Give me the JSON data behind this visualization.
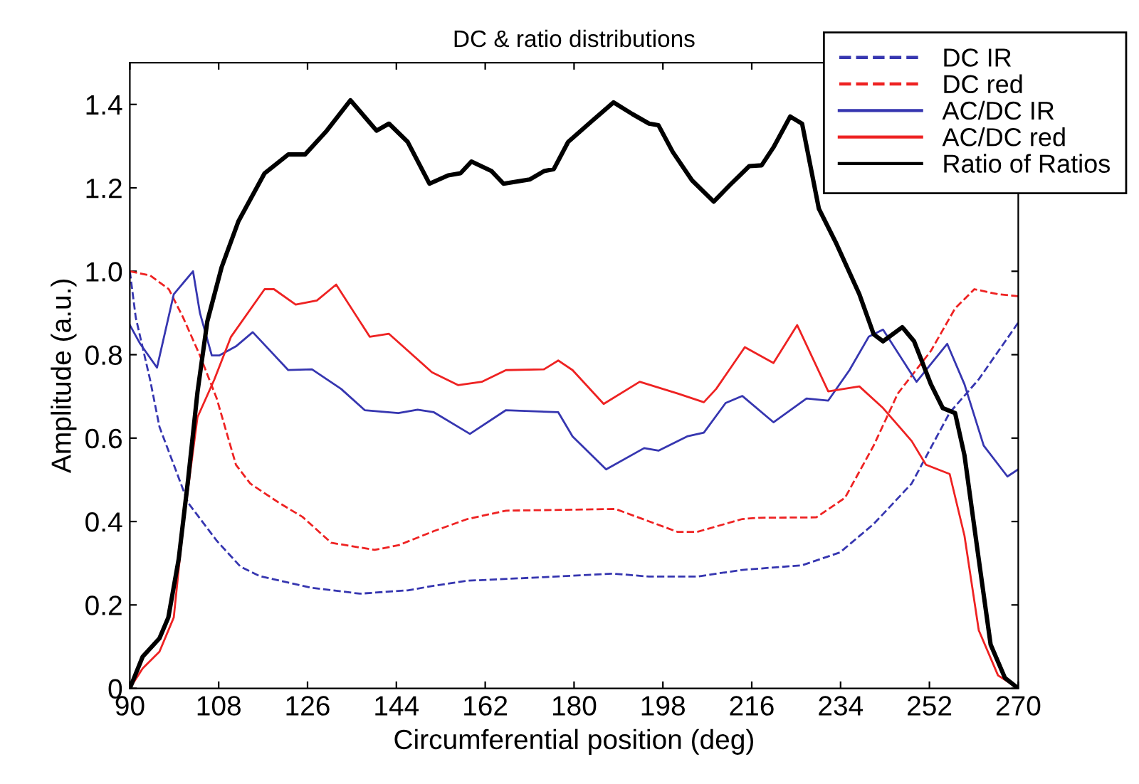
{
  "chart_data": {
    "type": "line",
    "title": "DC & ratio distributions",
    "xlabel": "Circumferential position (deg)",
    "ylabel": "Amplitude (a.u.)",
    "xlim": [
      90,
      270
    ],
    "ylim": [
      0,
      1.5
    ],
    "xticks": [
      90,
      108,
      126,
      144,
      162,
      180,
      198,
      216,
      234,
      252,
      270
    ],
    "yticks": [
      0,
      0.2,
      0.4,
      0.6,
      0.8,
      {
        "value": 1.0,
        "label": "1.0"
      },
      1.2,
      1.4
    ],
    "grid": false,
    "legend": "top right",
    "marker": "none",
    "series": [
      {
        "name": "DC IR",
        "color": "#3636b0",
        "line_style": "dashed",
        "x": [
          90,
          91.2,
          94.1,
          96,
          98.9,
          101.8,
          107.6,
          112.4,
          116.3,
          126.9,
          136.6,
          146.3,
          151.6,
          158.4,
          169.2,
          188,
          195.2,
          204.9,
          214.1,
          226.2,
          233.9,
          240.7,
          248.4,
          256.1,
          262,
          270
        ],
        "values": [
          1.0,
          0.889,
          0.74,
          0.627,
          0.536,
          0.445,
          0.354,
          0.292,
          0.269,
          0.241,
          0.227,
          0.235,
          0.246,
          0.258,
          0.264,
          0.275,
          0.268,
          0.268,
          0.284,
          0.295,
          0.326,
          0.394,
          0.491,
          0.661,
          0.741,
          0.877
        ]
      },
      {
        "name": "DC red",
        "color": "#ee2222",
        "line_style": "dashed",
        "x": [
          90,
          94.1,
          97.9,
          100.8,
          104.2,
          107.6,
          111.5,
          114.4,
          120.2,
          125,
          130.8,
          139.6,
          144.4,
          151.6,
          158.4,
          166.2,
          188.4,
          201,
          204.9,
          214.1,
          217.5,
          229.1,
          234.9,
          240.7,
          245.6,
          252.3,
          257.2,
          261.1,
          265.9,
          270
        ],
        "values": [
          1.0,
          0.99,
          0.957,
          0.889,
          0.798,
          0.695,
          0.536,
          0.491,
          0.445,
          0.411,
          0.349,
          0.332,
          0.343,
          0.377,
          0.406,
          0.426,
          0.43,
          0.375,
          0.375,
          0.406,
          0.409,
          0.41,
          0.457,
          0.582,
          0.707,
          0.809,
          0.911,
          0.957,
          0.945,
          0.94
        ]
      },
      {
        "name": "AC/DC IR",
        "color": "#3636b0",
        "line_style": "solid",
        "x": [
          90,
          92.1,
          95.5,
          98.9,
          102.8,
          104.2,
          106.6,
          108.1,
          111.5,
          114.9,
          122.1,
          126.9,
          132.8,
          137.6,
          144.4,
          148.3,
          151.6,
          158.9,
          166.2,
          176.8,
          179.7,
          186.5,
          194.2,
          197.1,
          202.9,
          206.3,
          210.7,
          214.1,
          220.4,
          227.1,
          231.5,
          235.8,
          239.7,
          242.6,
          249.4,
          255.6,
          259.1,
          263,
          267.8,
          270
        ],
        "values": [
          0.871,
          0.826,
          0.769,
          0.945,
          1.0,
          0.9,
          0.798,
          0.798,
          0.82,
          0.854,
          0.763,
          0.765,
          0.718,
          0.667,
          0.66,
          0.668,
          0.662,
          0.61,
          0.667,
          0.662,
          0.604,
          0.525,
          0.576,
          0.57,
          0.604,
          0.613,
          0.684,
          0.701,
          0.638,
          0.695,
          0.69,
          0.763,
          0.843,
          0.86,
          0.735,
          0.826,
          0.729,
          0.582,
          0.508,
          0.525
        ]
      },
      {
        "name": "AC/DC red",
        "color": "#ee2222",
        "line_style": "solid",
        "x": [
          90,
          92.6,
          96,
          98.9,
          100.8,
          103.7,
          107.1,
          110.5,
          117.3,
          119.2,
          123.6,
          127.9,
          131.8,
          138.6,
          142.5,
          151.2,
          156.5,
          161.3,
          166.2,
          173.9,
          176.8,
          179.7,
          186,
          193.3,
          201,
          206.3,
          208.8,
          214.6,
          220.4,
          225.2,
          231.5,
          237.8,
          242.6,
          248.4,
          251.3,
          256.1,
          259.1,
          262,
          265.9,
          270
        ],
        "values": [
          0,
          0.048,
          0.088,
          0.17,
          0.39,
          0.65,
          0.74,
          0.843,
          0.957,
          0.957,
          0.92,
          0.93,
          0.968,
          0.843,
          0.85,
          0.758,
          0.727,
          0.735,
          0.763,
          0.765,
          0.786,
          0.763,
          0.682,
          0.735,
          0.707,
          0.686,
          0.718,
          0.818,
          0.78,
          0.871,
          0.712,
          0.724,
          0.672,
          0.593,
          0.536,
          0.514,
          0.366,
          0.139,
          0.031,
          0
        ]
      },
      {
        "name": "Ratio of Ratios",
        "color": "#000000",
        "line_style": "solid",
        "x": [
          90,
          92.6,
          96,
          97.8,
          99.9,
          101.8,
          103.7,
          105.7,
          108.6,
          112,
          117.3,
          122.1,
          125.5,
          129.9,
          134.7,
          140,
          142.5,
          146.3,
          150.7,
          154.5,
          157,
          159.2,
          163.3,
          165.7,
          171,
          173.9,
          175.9,
          178.8,
          183.6,
          188,
          191.8,
          195.2,
          197.1,
          200,
          203.9,
          208.3,
          211.6,
          215.5,
          218,
          220.4,
          223.8,
          226.2,
          229.6,
          233,
          237.8,
          240.7,
          242.6,
          246.5,
          248.9,
          252.3,
          254.7,
          257.2,
          259.1,
          262,
          264.4,
          267.3,
          270
        ],
        "values": [
          0,
          0.076,
          0.12,
          0.17,
          0.31,
          0.5,
          0.71,
          0.88,
          1.01,
          1.12,
          1.235,
          1.28,
          1.28,
          1.337,
          1.41,
          1.337,
          1.354,
          1.31,
          1.21,
          1.23,
          1.235,
          1.263,
          1.24,
          1.21,
          1.22,
          1.24,
          1.245,
          1.31,
          1.36,
          1.405,
          1.377,
          1.354,
          1.35,
          1.286,
          1.218,
          1.167,
          1.207,
          1.252,
          1.254,
          1.297,
          1.371,
          1.354,
          1.15,
          1.07,
          0.945,
          0.849,
          0.832,
          0.866,
          0.832,
          0.729,
          0.672,
          0.66,
          0.559,
          0.309,
          0.105,
          0.025,
          0
        ]
      }
    ]
  }
}
